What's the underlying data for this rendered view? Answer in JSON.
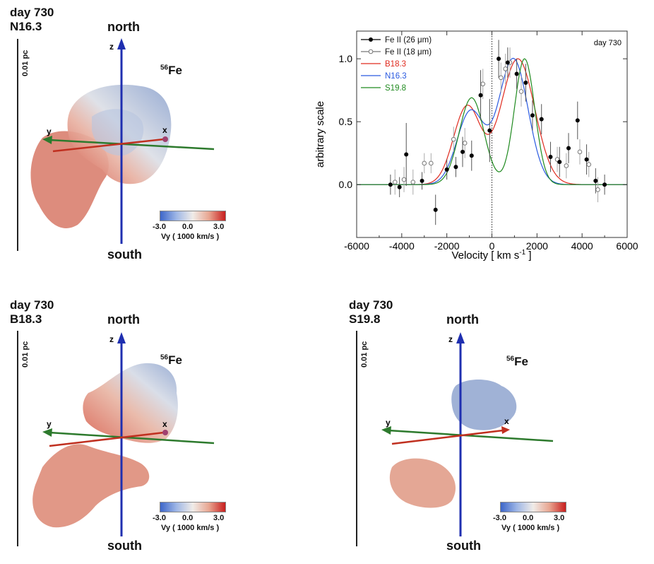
{
  "panels": [
    {
      "day": "day 730",
      "model": "N16.3",
      "scale": "0.01 pc",
      "north": "north",
      "south": "south",
      "element": "Fe",
      "isotope": "56",
      "axis_z": "z",
      "axis_y": "y",
      "axis_x": "x",
      "colorbar": {
        "min": "-3.0",
        "mid": "0.0",
        "max": "3.0",
        "label": "Vy ( 1000 km/s )"
      }
    },
    {
      "day": "day 730",
      "model": "B18.3",
      "scale": "0.01 pc",
      "north": "north",
      "south": "south",
      "element": "Fe",
      "isotope": "56",
      "axis_z": "z",
      "axis_y": "y",
      "axis_x": "x",
      "colorbar": {
        "min": "-3.0",
        "mid": "0.0",
        "max": "3.0",
        "label": "Vy ( 1000 km/s )"
      }
    },
    {
      "day": "day 730",
      "model": "S19.8",
      "scale": "0.01 pc",
      "north": "north",
      "south": "south",
      "element": "Fe",
      "isotope": "56",
      "axis_z": "z",
      "axis_y": "y",
      "axis_x": "x",
      "colorbar": {
        "min": "-3.0",
        "mid": "0.0",
        "max": "3.0",
        "label": "Vy ( 1000 km/s )"
      }
    }
  ],
  "chart_data": {
    "type": "line",
    "annotation": "day 730",
    "xlabel": "Velocity [ km s",
    "xlabel_sup": "-1",
    "xlabel_end": " ]",
    "ylabel": "arbitrary scale",
    "xlim": [
      -6000,
      6000
    ],
    "ylim": [
      -0.42,
      1.22
    ],
    "xticks": [
      -6000,
      -4000,
      -2000,
      0,
      2000,
      4000,
      6000
    ],
    "yticks": [
      0.0,
      0.5,
      1.0
    ],
    "ytick_labels": [
      "0.0",
      "0.5",
      "1.0"
    ],
    "zero_line_x": 0,
    "legend": [
      "Fe II (26 μm)",
      "Fe II (18 μm)",
      "B18.3",
      "N16.3",
      "S19.8"
    ],
    "colors": {
      "B18.3": "#e02a1e",
      "N16.3": "#2a5ae0",
      "S19.8": "#1f8a1f",
      "data26": "#000000",
      "data18": "#777777"
    },
    "series_26um": [
      {
        "x": -4500,
        "y": 0.0,
        "err": 0.08
      },
      {
        "x": -4100,
        "y": -0.02,
        "err": 0.08
      },
      {
        "x": -3800,
        "y": 0.24,
        "err": 0.25
      },
      {
        "x": -3100,
        "y": 0.03,
        "err": 0.07
      },
      {
        "x": -2500,
        "y": -0.2,
        "err": 0.12
      },
      {
        "x": -2000,
        "y": 0.12,
        "err": 0.08
      },
      {
        "x": -1600,
        "y": 0.14,
        "err": 0.08
      },
      {
        "x": -1300,
        "y": 0.26,
        "err": 0.12
      },
      {
        "x": -900,
        "y": 0.23,
        "err": 0.12
      },
      {
        "x": -500,
        "y": 0.71,
        "err": 0.2
      },
      {
        "x": -100,
        "y": 0.43,
        "err": 0.25
      },
      {
        "x": 300,
        "y": 1.0,
        "err": 0.15
      },
      {
        "x": 700,
        "y": 0.97,
        "err": 0.12
      },
      {
        "x": 1100,
        "y": 0.88,
        "err": 0.12
      },
      {
        "x": 1500,
        "y": 0.81,
        "err": 0.15
      },
      {
        "x": 1800,
        "y": 0.55,
        "err": 0.12
      },
      {
        "x": 2200,
        "y": 0.52,
        "err": 0.12
      },
      {
        "x": 2600,
        "y": 0.22,
        "err": 0.12
      },
      {
        "x": 3000,
        "y": 0.18,
        "err": 0.12
      },
      {
        "x": 3400,
        "y": 0.29,
        "err": 0.12
      },
      {
        "x": 3800,
        "y": 0.51,
        "err": 0.15
      },
      {
        "x": 4200,
        "y": 0.2,
        "err": 0.12
      },
      {
        "x": 4600,
        "y": 0.03,
        "err": 0.1
      },
      {
        "x": 5000,
        "y": 0.0,
        "err": 0.08
      }
    ],
    "series_18um": [
      {
        "x": -4300,
        "y": 0.02,
        "err": 0.1
      },
      {
        "x": -3900,
        "y": 0.04,
        "err": 0.1
      },
      {
        "x": -3500,
        "y": 0.02,
        "err": 0.1
      },
      {
        "x": -3000,
        "y": 0.17,
        "err": 0.08
      },
      {
        "x": -2700,
        "y": 0.17,
        "err": 0.08
      },
      {
        "x": -1700,
        "y": 0.36,
        "err": 0.1
      },
      {
        "x": -1200,
        "y": 0.33,
        "err": 0.12
      },
      {
        "x": -400,
        "y": 0.8,
        "err": 0.12
      },
      {
        "x": 400,
        "y": 0.85,
        "err": 0.12
      },
      {
        "x": 600,
        "y": 0.92,
        "err": 0.12
      },
      {
        "x": 800,
        "y": 0.97,
        "err": 0.12
      },
      {
        "x": 1300,
        "y": 0.74,
        "err": 0.12
      },
      {
        "x": 2900,
        "y": 0.2,
        "err": 0.1
      },
      {
        "x": 3300,
        "y": 0.15,
        "err": 0.1
      },
      {
        "x": 3900,
        "y": 0.26,
        "err": 0.1
      },
      {
        "x": 4300,
        "y": 0.16,
        "err": 0.1
      },
      {
        "x": 4700,
        "y": -0.04,
        "err": 0.1
      }
    ],
    "model_curves": [
      {
        "name": "B18.3",
        "gaussians": [
          {
            "a": 0.62,
            "mu": -1100,
            "s": 600
          },
          {
            "a": 1.0,
            "mu": 1150,
            "s": 750
          }
        ]
      },
      {
        "name": "N16.3",
        "gaussians": [
          {
            "a": 0.58,
            "mu": -950,
            "s": 600
          },
          {
            "a": 1.0,
            "mu": 950,
            "s": 650
          }
        ]
      },
      {
        "name": "S19.8",
        "gaussians": [
          {
            "a": 0.69,
            "mu": -900,
            "s": 550
          },
          {
            "a": 1.0,
            "mu": 1450,
            "s": 450
          }
        ]
      }
    ]
  }
}
